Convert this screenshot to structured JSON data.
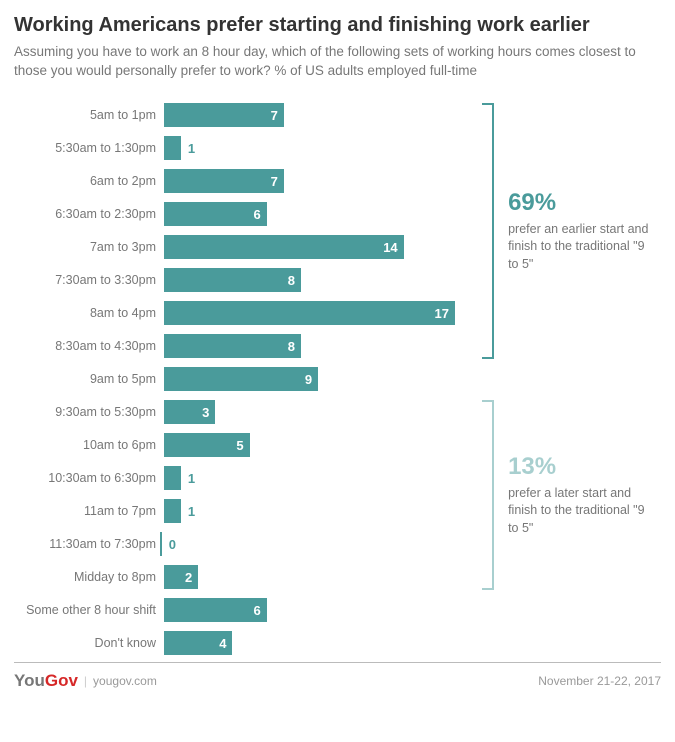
{
  "title": "Working Americans prefer starting and finishing work earlier",
  "subtitle": "Assuming you have to work an 8 hour day, which of the following sets of working hours comes closest to those you would personally prefer to work? % of US adults employed full-time",
  "chart": {
    "type": "bar-horizontal",
    "bar_color": "#4a9b9b",
    "max_value": 18,
    "label_color": "#777",
    "value_color": "#fff",
    "rows": [
      {
        "label": "5am to 1pm",
        "value": 7
      },
      {
        "label": "5:30am to 1:30pm",
        "value": 1
      },
      {
        "label": "6am to 2pm",
        "value": 7
      },
      {
        "label": "6:30am to 2:30pm",
        "value": 6
      },
      {
        "label": "7am to 3pm",
        "value": 14
      },
      {
        "label": "7:30am to 3:30pm",
        "value": 8
      },
      {
        "label": "8am to 4pm",
        "value": 17
      },
      {
        "label": "8:30am to 4:30pm",
        "value": 8
      },
      {
        "label": "9am to 5pm",
        "value": 9
      },
      {
        "label": "9:30am to 5:30pm",
        "value": 3
      },
      {
        "label": "10am to 6pm",
        "value": 5
      },
      {
        "label": "10:30am to 6:30pm",
        "value": 1
      },
      {
        "label": "11am to 7pm",
        "value": 1
      },
      {
        "label": "11:30am to 7:30pm",
        "value": 0
      },
      {
        "label": "Midday to 8pm",
        "value": 2
      },
      {
        "label": "Some other 8 hour shift",
        "value": 6
      },
      {
        "label": "Don't know",
        "value": 4
      }
    ]
  },
  "callouts": [
    {
      "pct": "69%",
      "pct_color": "#4a9b9b",
      "text": "prefer an earlier start and finish to the traditional \"9 to 5\"",
      "bracket_rows": [
        0,
        7
      ],
      "bracket_color": "#4a9b9b"
    },
    {
      "pct": "13%",
      "pct_color": "#a8cfcf",
      "text": "prefer a later start and finish to the traditional \"9 to 5\"",
      "bracket_rows": [
        9,
        14
      ],
      "bracket_color": "#a8cfcf"
    }
  ],
  "footer": {
    "source": "yougov.com",
    "date": "November 21-22, 2017",
    "logo_you": "You",
    "logo_gov": "Gov"
  }
}
